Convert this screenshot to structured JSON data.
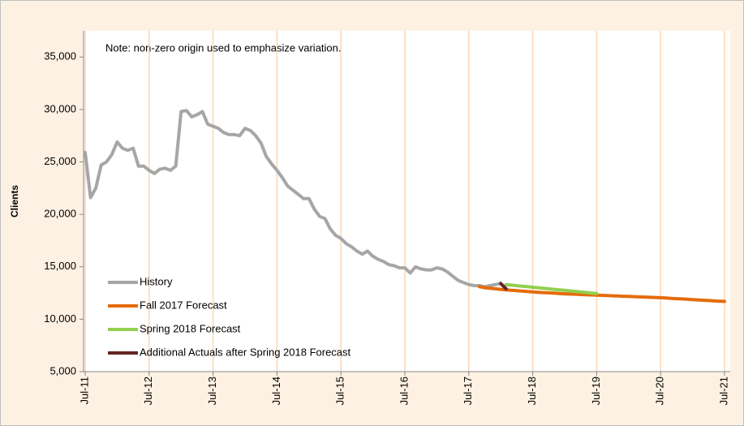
{
  "chart_data": {
    "type": "line",
    "y_label": "Clients",
    "annotation": "Note: non-zero origin used to emphasize variation.",
    "ylim": [
      5000,
      37500
    ],
    "yticks": [
      {
        "value": 5000,
        "label": "5,000"
      },
      {
        "value": 10000,
        "label": "10,000"
      },
      {
        "value": 15000,
        "label": "15,000"
      },
      {
        "value": 20000,
        "label": "20,000"
      },
      {
        "value": 25000,
        "label": "25,000"
      },
      {
        "value": 30000,
        "label": "30,000"
      },
      {
        "value": 35000,
        "label": "35,000"
      }
    ],
    "xlim": [
      "Jul-11",
      "Jul-21"
    ],
    "xticks": [
      "Jul-11",
      "Jul-12",
      "Jul-13",
      "Jul-14",
      "Jul-15",
      "Jul-16",
      "Jul-17",
      "Jul-18",
      "Jul-19",
      "Jul-20",
      "Jul-21"
    ],
    "grid": "x",
    "legend": "lower left",
    "series": [
      {
        "name": "History",
        "color": "#a6a6a6",
        "x": [
          "Jul-11",
          "Aug-11",
          "Sep-11",
          "Oct-11",
          "Nov-11",
          "Dec-11",
          "Jan-12",
          "Feb-12",
          "Mar-12",
          "Apr-12",
          "May-12",
          "Jun-12",
          "Jul-12",
          "Aug-12",
          "Sep-12",
          "Oct-12",
          "Nov-12",
          "Dec-12",
          "Jan-13",
          "Feb-13",
          "Mar-13",
          "Apr-13",
          "May-13",
          "Jun-13",
          "Jul-13",
          "Aug-13",
          "Sep-13",
          "Oct-13",
          "Nov-13",
          "Dec-13",
          "Jan-14",
          "Feb-14",
          "Mar-14",
          "Apr-14",
          "May-14",
          "Jun-14",
          "Jul-14",
          "Aug-14",
          "Sep-14",
          "Oct-14",
          "Nov-14",
          "Dec-14",
          "Jan-15",
          "Feb-15",
          "Mar-15",
          "Apr-15",
          "May-15",
          "Jun-15",
          "Jul-15",
          "Aug-15",
          "Sep-15",
          "Oct-15",
          "Nov-15",
          "Dec-15",
          "Jan-16",
          "Feb-16",
          "Mar-16",
          "Apr-16",
          "May-16",
          "Jun-16",
          "Jul-16",
          "Aug-16",
          "Sep-16",
          "Oct-16",
          "Nov-16",
          "Dec-16",
          "Jan-17",
          "Feb-17",
          "Mar-17",
          "Apr-17",
          "May-17",
          "Jun-17",
          "Jul-17",
          "Aug-17",
          "Sep-17",
          "Oct-17",
          "Nov-17",
          "Dec-17",
          "Jan-18"
        ],
        "values": [
          25900,
          21600,
          22500,
          24700,
          25000,
          25700,
          26900,
          26300,
          26100,
          26300,
          24600,
          24600,
          24200,
          23900,
          24300,
          24400,
          24200,
          24600,
          29800,
          29900,
          29300,
          29500,
          29800,
          28600,
          28400,
          28200,
          27800,
          27600,
          27600,
          27500,
          28200,
          28000,
          27500,
          26800,
          25500,
          24800,
          24200,
          23500,
          22700,
          22300,
          21900,
          21500,
          21500,
          20500,
          19800,
          19600,
          18600,
          18000,
          17700,
          17200,
          16900,
          16500,
          16200,
          16500,
          16000,
          15700,
          15500,
          15200,
          15100,
          14900,
          14900,
          14400,
          15000,
          14800,
          14700,
          14700,
          14900,
          14800,
          14500,
          14100,
          13700,
          13500,
          13300,
          13200,
          13200,
          13100,
          13200,
          13300,
          13400
        ]
      },
      {
        "name": "Fall 2017 Forecast",
        "color": "#e46c0a",
        "x": [
          "Sep-17",
          "Oct-17",
          "Nov-17",
          "Dec-17",
          "Jan-18",
          "Feb-18",
          "Mar-18",
          "Apr-18",
          "May-18",
          "Jun-18",
          "Jul-18",
          "Aug-18",
          "Sep-18",
          "Oct-18",
          "Nov-18",
          "Dec-18",
          "Jan-19",
          "Feb-19",
          "Mar-19",
          "Apr-19",
          "May-19",
          "Jun-19",
          "Jul-19",
          "Aug-19",
          "Sep-19",
          "Oct-19",
          "Nov-19",
          "Dec-19",
          "Jan-20",
          "Feb-20",
          "Mar-20",
          "Apr-20",
          "May-20",
          "Jun-20",
          "Jul-20",
          "Aug-20",
          "Sep-20",
          "Oct-20",
          "Nov-20",
          "Dec-20",
          "Jan-21",
          "Feb-21",
          "Mar-21",
          "Apr-21",
          "May-21",
          "Jun-21",
          "Jul-21"
        ],
        "values": [
          13100,
          13000,
          12950,
          12900,
          12850,
          12800,
          12760,
          12720,
          12680,
          12640,
          12600,
          12570,
          12540,
          12510,
          12480,
          12450,
          12420,
          12400,
          12380,
          12350,
          12330,
          12310,
          12290,
          12270,
          12250,
          12230,
          12210,
          12190,
          12170,
          12150,
          12130,
          12110,
          12090,
          12070,
          12050,
          12020,
          11990,
          11960,
          11930,
          11900,
          11870,
          11840,
          11810,
          11780,
          11750,
          11720,
          11700
        ]
      },
      {
        "name": "Spring 2018 Forecast",
        "color": "#92d050",
        "x": [
          "Feb-18",
          "Mar-18",
          "Apr-18",
          "May-18",
          "Jun-18",
          "Jul-18",
          "Aug-18",
          "Sep-18",
          "Oct-18",
          "Nov-18",
          "Dec-18",
          "Jan-19",
          "Feb-19",
          "Mar-19",
          "Apr-19",
          "May-19",
          "Jun-19",
          "Jul-19"
        ],
        "values": [
          13300,
          13250,
          13200,
          13150,
          13100,
          13050,
          13000,
          12950,
          12900,
          12850,
          12800,
          12750,
          12700,
          12650,
          12600,
          12550,
          12500,
          12450
        ]
      },
      {
        "name": "Additional Actuals after Spring 2018 Forecast",
        "color": "#632523",
        "x": [
          "Jan-18",
          "Feb-18"
        ],
        "values": [
          13400,
          12900
        ]
      }
    ]
  }
}
